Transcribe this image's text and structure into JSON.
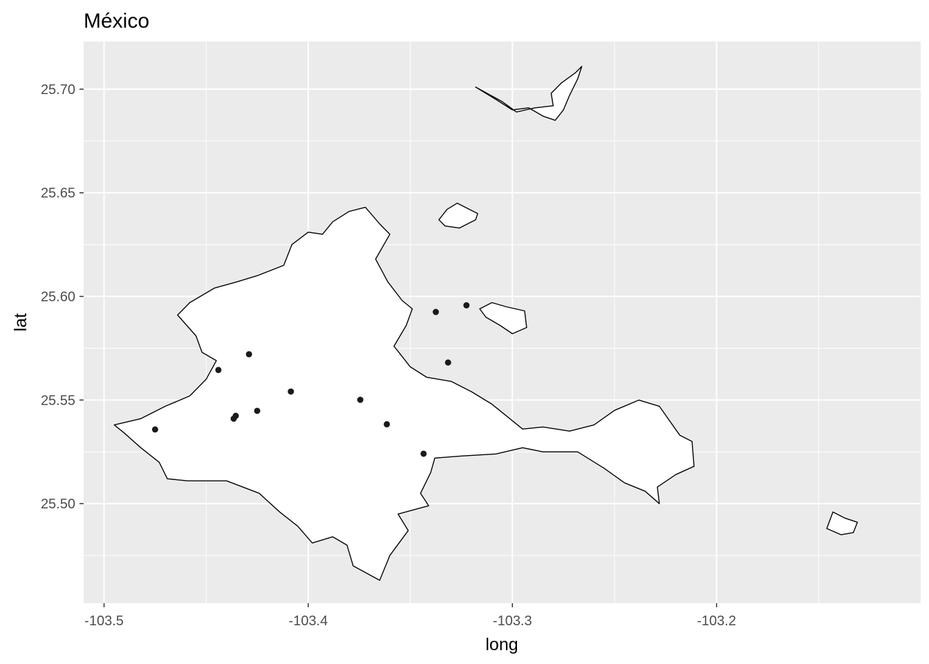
{
  "chart_data": {
    "type": "map",
    "title": "México",
    "xlabel": "long",
    "ylabel": "lat",
    "xlim": [
      -103.51,
      -103.1
    ],
    "ylim": [
      25.452,
      25.723
    ],
    "x_ticks": [
      {
        "value": -103.5,
        "label": "-103.5"
      },
      {
        "value": -103.4,
        "label": "-103.4"
      },
      {
        "value": -103.3,
        "label": "-103.3"
      },
      {
        "value": -103.2,
        "label": "-103.2"
      }
    ],
    "y_ticks": [
      {
        "value": 25.5,
        "label": "25.50"
      },
      {
        "value": 25.55,
        "label": "25.55"
      },
      {
        "value": 25.6,
        "label": "25.60"
      },
      {
        "value": 25.65,
        "label": "25.65"
      },
      {
        "value": 25.7,
        "label": "25.70"
      }
    ],
    "panel_background": "#ebebeb",
    "grid_color": "#ffffff",
    "polygon_fill": "#ffffff",
    "polygon_stroke": "#000000",
    "point_color": "#1a1a1a",
    "points": [
      {
        "long": -103.475,
        "lat": 25.5358
      },
      {
        "long": -103.444,
        "lat": 25.5645
      },
      {
        "long": -103.429,
        "lat": 25.5721
      },
      {
        "long": -103.4355,
        "lat": 25.5424
      },
      {
        "long": -103.4365,
        "lat": 25.541
      },
      {
        "long": -103.425,
        "lat": 25.5448
      },
      {
        "long": -103.4085,
        "lat": 25.5541
      },
      {
        "long": -103.3745,
        "lat": 25.5501
      },
      {
        "long": -103.3615,
        "lat": 25.5383
      },
      {
        "long": -103.3435,
        "lat": 25.5241
      },
      {
        "long": -103.3375,
        "lat": 25.5925
      },
      {
        "long": -103.3225,
        "lat": 25.5957
      },
      {
        "long": -103.3315,
        "lat": 25.5681
      }
    ],
    "regions": [
      {
        "name": "main",
        "coords": [
          [
            -103.495,
            25.538
          ],
          [
            -103.482,
            25.541
          ],
          [
            -103.47,
            25.547
          ],
          [
            -103.458,
            25.552
          ],
          [
            -103.45,
            25.56
          ],
          [
            -103.445,
            25.569
          ],
          [
            -103.452,
            25.573
          ],
          [
            -103.455,
            25.581
          ],
          [
            -103.464,
            25.591
          ],
          [
            -103.458,
            25.597
          ],
          [
            -103.446,
            25.604
          ],
          [
            -103.435,
            25.607
          ],
          [
            -103.425,
            25.61
          ],
          [
            -103.412,
            25.615
          ],
          [
            -103.408,
            25.625
          ],
          [
            -103.4,
            25.631
          ],
          [
            -103.393,
            25.63
          ],
          [
            -103.388,
            25.636
          ],
          [
            -103.38,
            25.641
          ],
          [
            -103.372,
            25.643
          ],
          [
            -103.365,
            25.635
          ],
          [
            -103.36,
            25.63
          ],
          [
            -103.367,
            25.618
          ],
          [
            -103.361,
            25.607
          ],
          [
            -103.354,
            25.598
          ],
          [
            -103.349,
            25.594
          ],
          [
            -103.352,
            25.586
          ],
          [
            -103.358,
            25.576
          ],
          [
            -103.35,
            25.566
          ],
          [
            -103.342,
            25.561
          ],
          [
            -103.33,
            25.559
          ],
          [
            -103.32,
            25.554
          ],
          [
            -103.31,
            25.548
          ],
          [
            -103.3,
            25.54
          ],
          [
            -103.295,
            25.536
          ],
          [
            -103.285,
            25.537
          ],
          [
            -103.272,
            25.535
          ],
          [
            -103.26,
            25.538
          ],
          [
            -103.25,
            25.545
          ],
          [
            -103.238,
            25.55
          ],
          [
            -103.228,
            25.547
          ],
          [
            -103.218,
            25.533
          ],
          [
            -103.212,
            25.53
          ],
          [
            -103.211,
            25.518
          ],
          [
            -103.22,
            25.514
          ],
          [
            -103.229,
            25.508
          ],
          [
            -103.228,
            25.5
          ],
          [
            -103.235,
            25.506
          ],
          [
            -103.245,
            25.51
          ],
          [
            -103.255,
            25.517
          ],
          [
            -103.268,
            25.525
          ],
          [
            -103.285,
            25.525
          ],
          [
            -103.295,
            25.527
          ],
          [
            -103.308,
            25.524
          ],
          [
            -103.325,
            25.523
          ],
          [
            -103.338,
            25.522
          ],
          [
            -103.34,
            25.515
          ],
          [
            -103.345,
            25.505
          ],
          [
            -103.341,
            25.499
          ],
          [
            -103.356,
            25.495
          ],
          [
            -103.351,
            25.487
          ],
          [
            -103.36,
            25.475
          ],
          [
            -103.365,
            25.463
          ],
          [
            -103.378,
            25.47
          ],
          [
            -103.381,
            25.48
          ],
          [
            -103.388,
            25.484
          ],
          [
            -103.398,
            25.481
          ],
          [
            -103.405,
            25.489
          ],
          [
            -103.414,
            25.496
          ],
          [
            -103.424,
            25.505
          ],
          [
            -103.44,
            25.511
          ],
          [
            -103.459,
            25.511
          ],
          [
            -103.469,
            25.512
          ],
          [
            -103.473,
            25.52
          ],
          [
            -103.482,
            25.527
          ],
          [
            -103.49,
            25.534
          ]
        ]
      },
      {
        "name": "east-north-strip",
        "coords": [
          [
            -103.318,
            25.701
          ],
          [
            -103.305,
            25.694
          ],
          [
            -103.298,
            25.689
          ],
          [
            -103.289,
            25.691
          ],
          [
            -103.28,
            25.692
          ],
          [
            -103.281,
            25.698
          ],
          [
            -103.276,
            25.703
          ],
          [
            -103.269,
            25.708
          ],
          [
            -103.266,
            25.711
          ],
          [
            -103.268,
            25.705
          ],
          [
            -103.272,
            25.697
          ],
          [
            -103.275,
            25.69
          ],
          [
            -103.279,
            25.685
          ],
          [
            -103.285,
            25.687
          ],
          [
            -103.292,
            25.691
          ],
          [
            -103.3,
            25.69
          ],
          [
            -103.308,
            25.695
          ]
        ]
      },
      {
        "name": "north-small",
        "coords": [
          [
            -103.336,
            25.637
          ],
          [
            -103.332,
            25.642
          ],
          [
            -103.327,
            25.645
          ],
          [
            -103.321,
            25.642
          ],
          [
            -103.317,
            25.64
          ],
          [
            -103.318,
            25.637
          ],
          [
            -103.326,
            25.633
          ],
          [
            -103.333,
            25.634
          ]
        ]
      },
      {
        "name": "east-small",
        "coords": [
          [
            -103.316,
            25.594
          ],
          [
            -103.31,
            25.597
          ],
          [
            -103.303,
            25.595
          ],
          [
            -103.294,
            25.593
          ],
          [
            -103.293,
            25.585
          ],
          [
            -103.3,
            25.582
          ],
          [
            -103.306,
            25.586
          ],
          [
            -103.313,
            25.59
          ]
        ]
      },
      {
        "name": "far-east",
        "coords": [
          [
            -103.146,
            25.488
          ],
          [
            -103.143,
            25.496
          ],
          [
            -103.137,
            25.493
          ],
          [
            -103.131,
            25.491
          ],
          [
            -103.133,
            25.486
          ],
          [
            -103.139,
            25.485
          ]
        ]
      }
    ]
  }
}
